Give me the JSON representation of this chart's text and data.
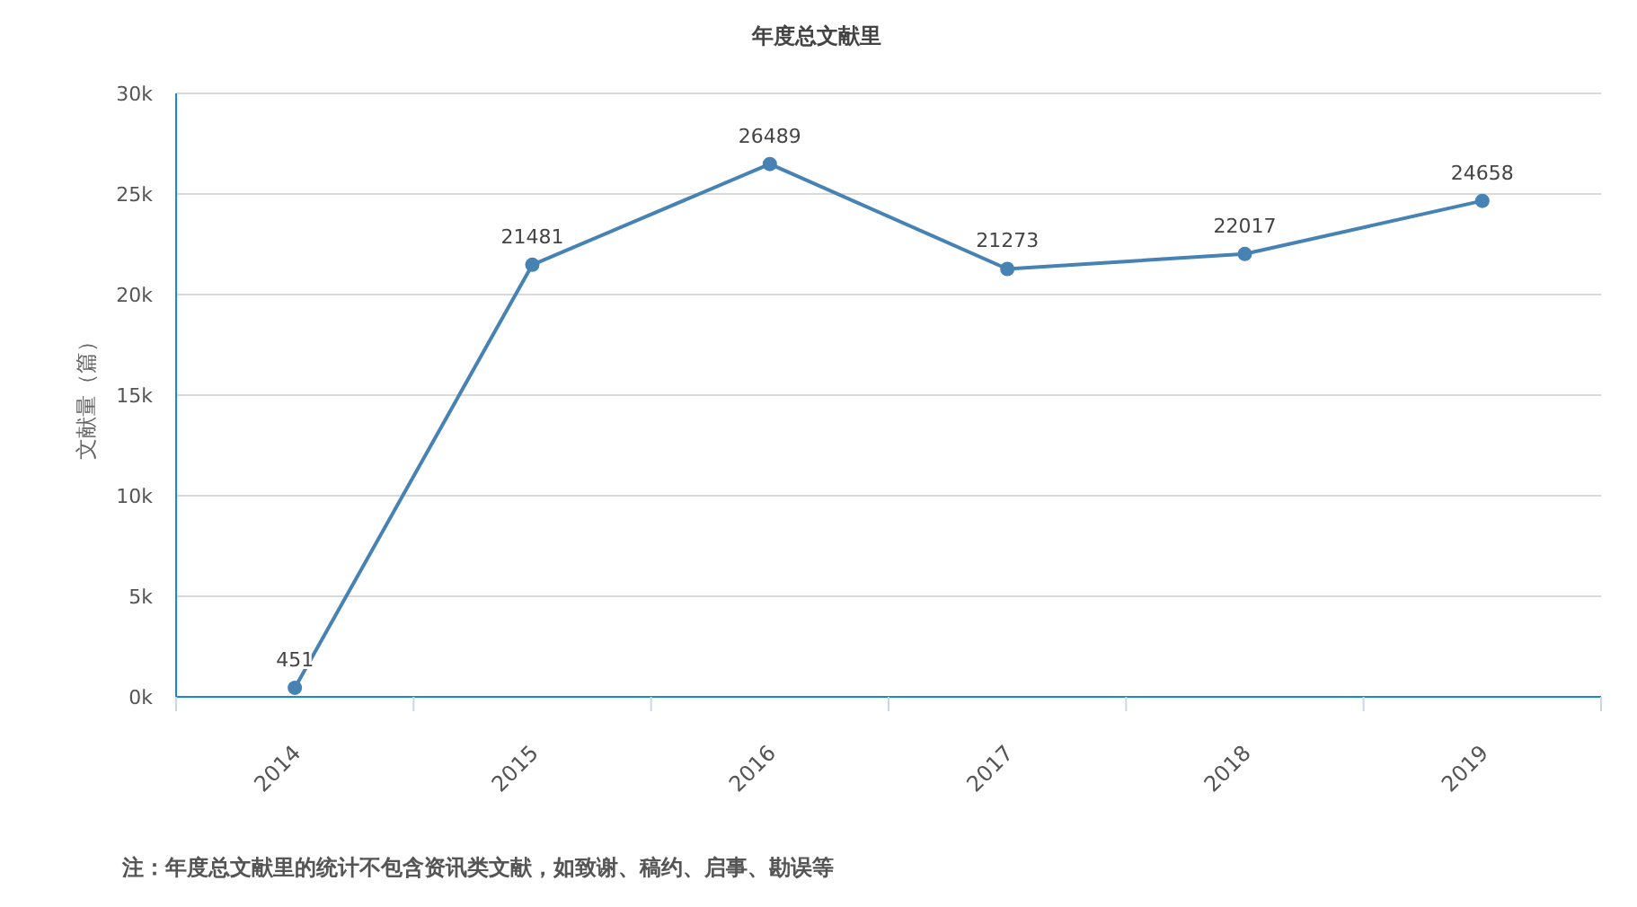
{
  "chart_data": {
    "type": "line",
    "title": "年度总文献里",
    "ylabel": "文献量（篇）",
    "categories": [
      "2014",
      "2015",
      "2016",
      "2017",
      "2018",
      "2019"
    ],
    "series": [
      {
        "color": "#4682b4",
        "values": [
          451,
          21481,
          26489,
          21273,
          22017,
          24658
        ]
      }
    ],
    "ylim": [
      0,
      30000
    ],
    "yticks": [
      {
        "value": 0,
        "label": "0k"
      },
      {
        "value": 5000,
        "label": "5k"
      },
      {
        "value": 10000,
        "label": "10k"
      },
      {
        "value": 15000,
        "label": "15k"
      },
      {
        "value": 20000,
        "label": "20k"
      },
      {
        "value": 25000,
        "label": "25k"
      },
      {
        "value": 30000,
        "label": "30k"
      }
    ],
    "grid": "y",
    "marker": "circle",
    "line_style": "solid",
    "data_labels": true,
    "annotations": [
      "注：年度总文献里的统计不包含资讯类文献，如致谢、稿约、启事、勘误等"
    ]
  }
}
